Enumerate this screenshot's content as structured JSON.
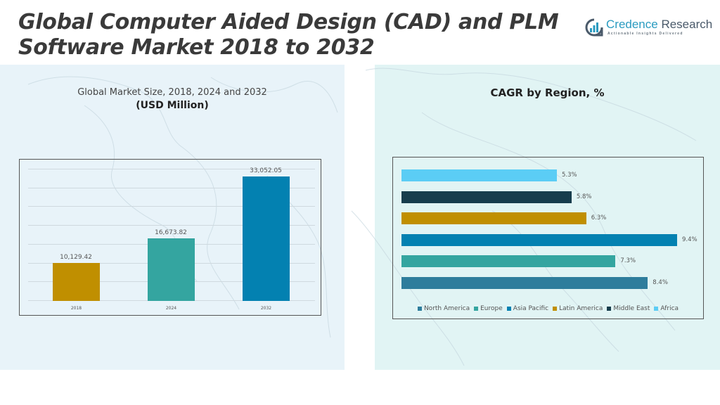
{
  "header": {
    "title_line1": "Global Computer Aided Design (CAD) and PLM",
    "title_line2": "Software Market 2018 to 2032",
    "logo": {
      "icon": "bar-chart-in-circle-icon",
      "name_part1": "Credence",
      "name_part2": " Research",
      "tagline": "Actionable Insights Delivered"
    }
  },
  "left_panel": {
    "subtitle": "Global Market Size, 2018, 2024 and 2032",
    "unit": "(USD Million)"
  },
  "right_panel": {
    "title": "CAGR by Region, %"
  },
  "chart_data": [
    {
      "type": "bar",
      "title": "Global Market Size, 2018, 2024 and 2032 (USD Million)",
      "xlabel": "",
      "ylabel": "USD Million",
      "categories": [
        "2018",
        "2024",
        "2032"
      ],
      "values": [
        10129.42,
        16673.82,
        33052.05
      ],
      "value_labels": [
        "10,129.42",
        "16,673.82",
        "33,052.05"
      ],
      "colors": [
        "#c08f00",
        "#34a5a0",
        "#0381b1"
      ],
      "ylim": [
        0,
        35000
      ],
      "grid": true,
      "gridline_count": 7,
      "legend": false
    },
    {
      "type": "bar",
      "orientation": "horizontal",
      "title": "CAGR by Region, %",
      "categories": [
        "Africa",
        "Middle East",
        "Latin America",
        "Asia Pacific",
        "Europe",
        "North America"
      ],
      "values": [
        5.3,
        5.8,
        6.3,
        9.4,
        7.3,
        8.4
      ],
      "value_labels": [
        "5.3%",
        "5.8%",
        "6.3%",
        "9.4%",
        "7.3%",
        "8.4%"
      ],
      "colors": [
        "#5bcdf5",
        "#173d4d",
        "#c08f00",
        "#0381b1",
        "#34a5a0",
        "#2e7d9c"
      ],
      "xlim": [
        0,
        10
      ],
      "grid": false,
      "legend_position": "bottom",
      "legend": [
        {
          "label": "North America",
          "color": "#2e7d9c"
        },
        {
          "label": "Europe",
          "color": "#34a5a0"
        },
        {
          "label": "Asia Pacific",
          "color": "#0381b1"
        },
        {
          "label": "Latin America",
          "color": "#c08f00"
        },
        {
          "label": "Middle East",
          "color": "#173d4d"
        },
        {
          "label": "Africa",
          "color": "#5bcdf5"
        }
      ]
    }
  ]
}
